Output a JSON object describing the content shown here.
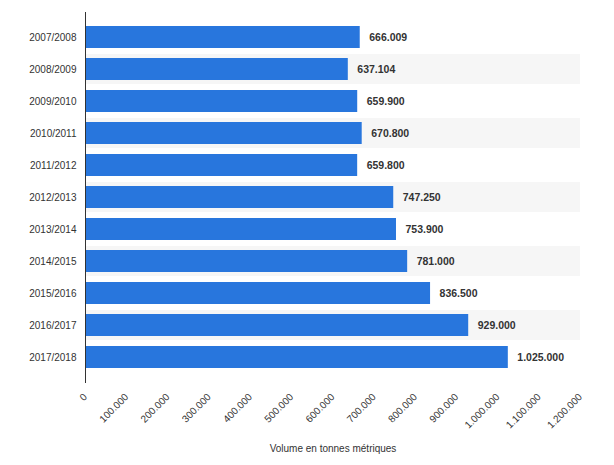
{
  "chart_data": {
    "type": "bar",
    "orientation": "horizontal",
    "categories": [
      "2007/2008",
      "2008/2009",
      "2009/2010",
      "2010/2011",
      "2011/2012",
      "2012/2013",
      "2013/2014",
      "2014/2015",
      "2015/2016",
      "2016/2017",
      "2017/2018"
    ],
    "values": [
      666009,
      637104,
      659900,
      670800,
      659800,
      747250,
      753900,
      781000,
      836500,
      929000,
      1025000
    ],
    "value_labels": [
      "666.009",
      "637.104",
      "659.900",
      "670.800",
      "659.800",
      "747.250",
      "753.900",
      "781.000",
      "836.500",
      "929.000",
      "1.025.000"
    ],
    "data_labels": true,
    "color": "#2876dd",
    "x_label": "Volume en tonnes métriques",
    "xlim": [
      0,
      1200000
    ],
    "xticks": [
      0,
      {
        "value": 100000,
        "label": "100.000"
      },
      {
        "value": 200000,
        "label": "200.000"
      },
      {
        "value": 300000,
        "label": "300.000"
      },
      {
        "value": 400000,
        "label": "400.000"
      },
      {
        "value": 500000,
        "label": "500.000"
      },
      {
        "value": 600000,
        "label": "600.000"
      },
      {
        "value": 700000,
        "label": "700.000"
      },
      {
        "value": 800000,
        "label": "800.000"
      },
      {
        "value": 900000,
        "label": "900.000"
      },
      {
        "value": 1000000,
        "label": "1.000.000"
      },
      {
        "value": 1100000,
        "label": "1.100.000"
      },
      {
        "value": 1200000,
        "label": "1.200.000"
      }
    ],
    "grid": false
  }
}
